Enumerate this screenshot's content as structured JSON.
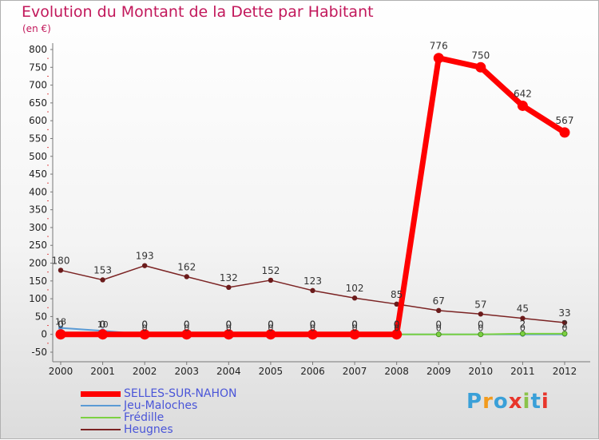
{
  "title": "Evolution du Montant de la Dette par Habitant",
  "subtitle": "(en €)",
  "logo": {
    "text": "Proxiti",
    "letter_colors": [
      "#3aa0d8",
      "#f29b1e",
      "#3aa0d8",
      "#e8352b",
      "#8bc34a",
      "#3aa0d8",
      "#e8352b"
    ]
  },
  "chart_data": {
    "type": "line",
    "title": "Evolution du Montant de la Dette par Habitant",
    "subtitle": "(en €)",
    "xlabel": "",
    "ylabel": "",
    "x": [
      "2000",
      "2001",
      "2002",
      "2003",
      "2004",
      "2005",
      "2006",
      "2007",
      "2008",
      "2009",
      "2010",
      "2011",
      "2012"
    ],
    "ylim": [
      -50,
      800
    ],
    "yticks": [
      -50,
      0,
      50,
      100,
      150,
      200,
      250,
      300,
      350,
      400,
      450,
      500,
      550,
      600,
      650,
      700,
      750,
      800
    ],
    "grid": false,
    "legend_position": "bottom-left",
    "series": [
      {
        "name": "SELLES-SUR-NAHON",
        "color": "#ff0000",
        "values": [
          0,
          0,
          0,
          0,
          0,
          0,
          0,
          0,
          0,
          776,
          750,
          642,
          567
        ],
        "labels": [
          "0",
          "0",
          "0",
          "0",
          "0",
          "0",
          "0",
          "0",
          "0",
          "776",
          "750",
          "642",
          "567"
        ]
      },
      {
        "name": "Jeu-Maloches",
        "color": "#5b9bd5",
        "values": [
          18,
          10,
          0,
          0,
          0,
          0,
          0,
          0,
          0,
          0,
          0,
          0,
          0
        ],
        "labels": [
          "18",
          "10",
          "0",
          "0",
          "0",
          "0",
          "0",
          "0",
          "0",
          "0",
          "0",
          "0",
          "0"
        ]
      },
      {
        "name": "Frédille",
        "color": "#7cd142",
        "values": [
          0,
          0,
          0,
          0,
          0,
          0,
          0,
          0,
          0,
          0,
          0,
          2,
          2
        ],
        "labels": [
          "0",
          "0",
          "0",
          "0",
          "0",
          "0",
          "0",
          "0",
          "0",
          "0",
          "0",
          "2",
          "2"
        ]
      },
      {
        "name": "Heugnes",
        "color": "#7b2323",
        "values": [
          180,
          153,
          193,
          162,
          132,
          152,
          123,
          102,
          85,
          67,
          57,
          45,
          33
        ],
        "labels": [
          "180",
          "153",
          "193",
          "162",
          "132",
          "152",
          "123",
          "102",
          "85",
          "67",
          "57",
          "45",
          "33"
        ]
      }
    ]
  }
}
